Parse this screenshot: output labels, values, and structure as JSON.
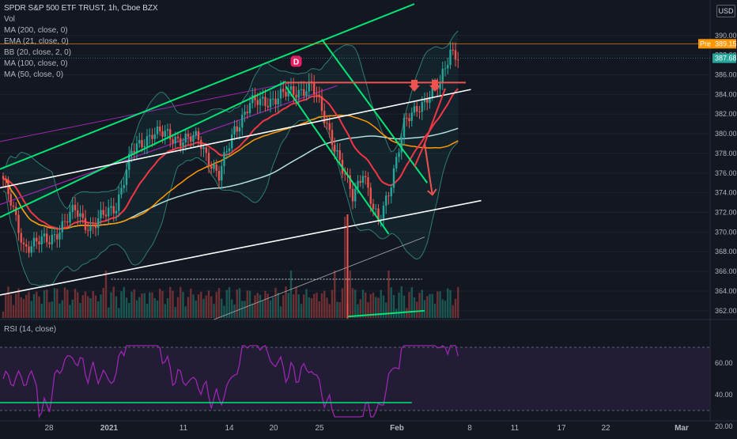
{
  "header": {
    "title": "SPDR S&P 500 ETF TRUST, 1h, Cboe BZX",
    "indicators": [
      "Vol",
      "MA (200, close, 0)",
      "EMA (21, close, 0)",
      "BB (20, close, 2, 0)",
      "MA (100, close, 0)",
      "MA (50, close, 0)"
    ],
    "currency": "USD"
  },
  "rsi_panel": {
    "label": "RSI (14, close)"
  },
  "event_marker": "D",
  "price_badges": {
    "pre_label": "Pre",
    "pre_value": "389.15",
    "last_value": "387.68"
  },
  "colors": {
    "background": "#131722",
    "up_candle": "#26a69a",
    "down_candle": "#ef5350",
    "ema21": "#f23645",
    "ma50": "#ff9800",
    "ma100": "#b2dfdb",
    "ma200": "#9c27b0",
    "bollinger": "#2e7d6e",
    "channel_green": "#00e676",
    "trend_white": "#ffffff",
    "rsi": "#9c27b0"
  },
  "chart_data": [
    {
      "type": "candlestick",
      "title": "SPDR S&P 500 ETF TRUST, 1h, Cboe BZX",
      "x_tick_labels": [
        "28",
        "2021",
        "11",
        "14",
        "20",
        "25",
        "Feb",
        "8",
        "11",
        "17",
        "22",
        "Mar"
      ],
      "y_tick_labels": [
        "362.00",
        "364.00",
        "366.00",
        "368.00",
        "370.00",
        "372.00",
        "374.00",
        "376.00",
        "378.00",
        "380.00",
        "382.00",
        "384.00",
        "386.00",
        "388.00",
        "390.00"
      ],
      "ylim": [
        361,
        392
      ],
      "price_anchors": [
        {
          "bar": 0,
          "price": 375.4
        },
        {
          "bar": 8,
          "price": 368.6
        },
        {
          "bar": 18,
          "price": 369.2
        },
        {
          "bar": 28,
          "price": 372.2
        },
        {
          "bar": 34,
          "price": 370.4
        },
        {
          "bar": 44,
          "price": 372.8
        },
        {
          "bar": 50,
          "price": 378.0
        },
        {
          "bar": 58,
          "price": 380.2
        },
        {
          "bar": 66,
          "price": 379.6
        },
        {
          "bar": 76,
          "price": 379.4
        },
        {
          "bar": 84,
          "price": 375.6
        },
        {
          "bar": 90,
          "price": 380.5
        },
        {
          "bar": 96,
          "price": 383.0
        },
        {
          "bar": 106,
          "price": 383.6
        },
        {
          "bar": 112,
          "price": 384.2
        },
        {
          "bar": 120,
          "price": 384.8
        },
        {
          "bar": 124,
          "price": 382.4
        },
        {
          "bar": 128,
          "price": 379.6
        },
        {
          "bar": 132,
          "price": 376.2
        },
        {
          "bar": 136,
          "price": 373.6
        },
        {
          "bar": 140,
          "price": 376.4
        },
        {
          "bar": 144,
          "price": 372.2
        },
        {
          "bar": 146,
          "price": 370.8
        },
        {
          "bar": 150,
          "price": 374.2
        },
        {
          "bar": 156,
          "price": 380.8
        },
        {
          "bar": 162,
          "price": 383.0
        },
        {
          "bar": 170,
          "price": 385.0
        },
        {
          "bar": 174,
          "price": 388.6
        },
        {
          "bar": 177,
          "price": 388.0
        }
      ],
      "overlays": [
        "EMA 21",
        "MA 50",
        "MA 100",
        "MA 200",
        "BB 20"
      ],
      "annotations": [
        "red resistance line ~385.2",
        "red down arrows",
        "green descending channel",
        "white trend lines"
      ]
    },
    {
      "type": "line",
      "title": "RSI (14, close)",
      "y_tick_labels": [
        "20.00",
        "40.00",
        "60.00"
      ],
      "ylim": [
        25,
        72
      ],
      "reference_levels": [
        70,
        30
      ],
      "support_level": 35
    }
  ]
}
